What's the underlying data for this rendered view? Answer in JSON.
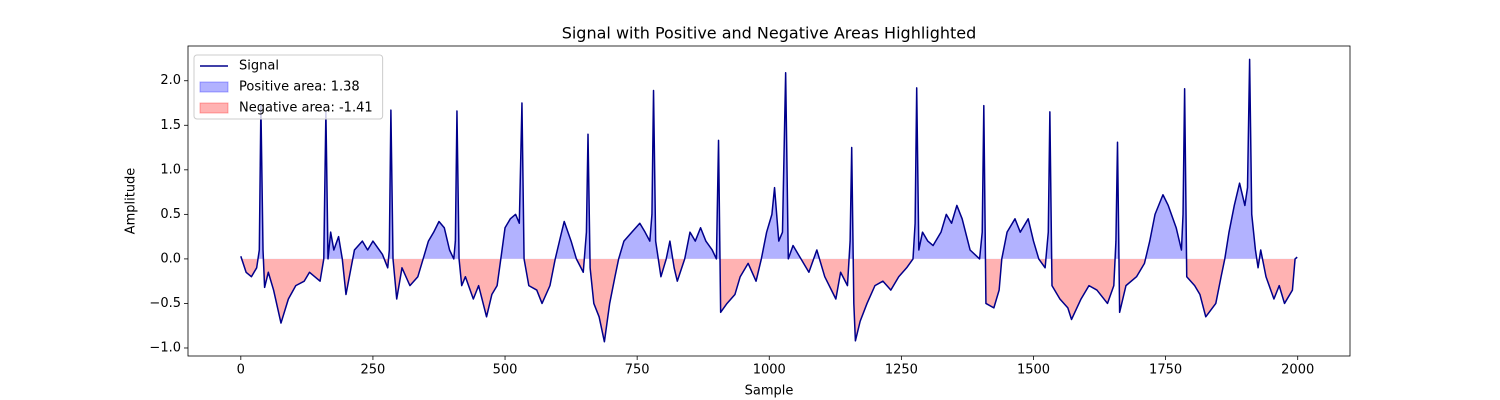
{
  "chart_data": {
    "type": "line",
    "title": "Signal with Positive and Negative Areas Highlighted",
    "xlabel": "Sample",
    "ylabel": "Amplitude",
    "x": [
      0,
      10,
      20,
      30,
      35,
      38,
      42,
      45,
      52,
      62,
      76,
      90,
      104,
      120,
      130,
      150,
      157,
      161,
      165,
      170,
      176,
      185,
      192,
      199,
      215,
      230,
      240,
      250,
      268,
      278,
      281,
      284,
      288,
      295,
      305,
      320,
      335,
      345,
      355,
      365,
      375,
      385,
      395,
      403,
      406,
      409,
      413,
      418,
      425,
      440,
      450,
      465,
      475,
      485,
      492,
      500,
      510,
      520,
      527,
      532,
      536,
      545,
      560,
      570,
      585,
      595,
      605,
      612,
      625,
      635,
      648,
      654,
      657,
      661,
      668,
      678,
      688,
      698,
      708,
      715,
      725,
      740,
      755,
      765,
      774,
      778,
      781,
      785,
      795,
      805,
      812,
      820,
      826,
      840,
      850,
      860,
      870,
      880,
      892,
      900,
      904,
      908,
      920,
      935,
      945,
      960,
      975,
      985,
      995,
      1005,
      1010,
      1018,
      1025,
      1031,
      1036,
      1045,
      1060,
      1075,
      1090,
      1105,
      1126,
      1135,
      1148,
      1153,
      1156,
      1160,
      1163,
      1172,
      1185,
      1200,
      1215,
      1230,
      1245,
      1260,
      1272,
      1276,
      1279,
      1283,
      1290,
      1300,
      1310,
      1325,
      1335,
      1345,
      1355,
      1365,
      1380,
      1398,
      1403,
      1406,
      1410,
      1425,
      1435,
      1440,
      1450,
      1465,
      1475,
      1490,
      1500,
      1510,
      1522,
      1528,
      1531,
      1535,
      1550,
      1565,
      1572,
      1590,
      1605,
      1620,
      1640,
      1652,
      1656,
      1659,
      1663,
      1675,
      1695,
      1710,
      1720,
      1730,
      1745,
      1755,
      1770,
      1780,
      1783,
      1786,
      1790,
      1805,
      1815,
      1826,
      1845,
      1855,
      1862,
      1870,
      1880,
      1890,
      1900,
      1905,
      1909,
      1913,
      1920,
      1925,
      1930,
      1940,
      1955,
      1965,
      1975,
      1990,
      1995,
      1999
    ],
    "series": [
      {
        "name": "Signal",
        "color": "#00008b",
        "values": [
          0.03,
          -0.15,
          -0.2,
          -0.1,
          0.1,
          1.72,
          0.1,
          -0.32,
          -0.15,
          -0.35,
          -0.72,
          -0.45,
          -0.3,
          -0.25,
          -0.15,
          -0.25,
          0.0,
          1.65,
          0.0,
          0.3,
          0.1,
          0.25,
          0.0,
          -0.4,
          0.1,
          0.2,
          0.1,
          0.2,
          0.05,
          -0.1,
          0.1,
          1.67,
          0.0,
          -0.45,
          -0.1,
          -0.3,
          -0.2,
          0.0,
          0.2,
          0.3,
          0.42,
          0.35,
          0.1,
          0.0,
          0.2,
          1.66,
          0.0,
          -0.3,
          -0.2,
          -0.45,
          -0.3,
          -0.65,
          -0.4,
          -0.3,
          0.0,
          0.35,
          0.45,
          0.5,
          0.4,
          1.75,
          0.0,
          -0.3,
          -0.35,
          -0.5,
          -0.3,
          0.0,
          0.25,
          0.42,
          0.2,
          0.0,
          -0.15,
          0.3,
          1.4,
          -0.1,
          -0.5,
          -0.65,
          -0.93,
          -0.5,
          -0.2,
          0.0,
          0.2,
          0.3,
          0.4,
          0.3,
          0.2,
          0.5,
          1.89,
          0.2,
          -0.2,
          0.0,
          0.2,
          -0.1,
          -0.25,
          0.0,
          0.3,
          0.2,
          0.35,
          0.2,
          0.1,
          0.0,
          1.33,
          -0.6,
          -0.5,
          -0.4,
          -0.2,
          -0.05,
          -0.25,
          0.0,
          0.3,
          0.5,
          0.8,
          0.2,
          0.3,
          2.09,
          0.0,
          0.15,
          0.0,
          -0.15,
          0.1,
          -0.2,
          -0.45,
          -0.15,
          -0.3,
          0.2,
          1.25,
          -0.5,
          -0.92,
          -0.7,
          -0.5,
          -0.3,
          -0.25,
          -0.35,
          -0.2,
          -0.1,
          0.0,
          0.4,
          1.92,
          0.1,
          0.3,
          0.2,
          0.15,
          0.3,
          0.5,
          0.4,
          0.6,
          0.45,
          0.1,
          0.0,
          0.3,
          1.72,
          -0.5,
          -0.55,
          -0.35,
          0.0,
          0.3,
          0.45,
          0.3,
          0.45,
          0.2,
          0.0,
          -0.1,
          0.3,
          1.65,
          -0.3,
          -0.45,
          -0.55,
          -0.68,
          -0.45,
          -0.3,
          -0.35,
          -0.5,
          -0.3,
          0.2,
          1.31,
          -0.6,
          -0.3,
          -0.2,
          -0.05,
          0.2,
          0.5,
          0.72,
          0.6,
          0.35,
          0.1,
          0.5,
          1.91,
          -0.2,
          -0.3,
          -0.4,
          -0.65,
          -0.5,
          -0.2,
          0.0,
          0.3,
          0.6,
          0.85,
          0.6,
          0.8,
          2.24,
          0.5,
          0.1,
          -0.1,
          0.1,
          -0.2,
          -0.45,
          -0.3,
          -0.5,
          -0.35,
          0.0,
          0.02
        ]
      }
    ],
    "fills": [
      {
        "name": "Positive area: 1.38",
        "color": "#0000ff",
        "opacity": 0.3,
        "side": "above"
      },
      {
        "name": "Negative area: -1.41",
        "color": "#ff0000",
        "opacity": 0.3,
        "side": "below"
      }
    ],
    "xlim": [
      -99.95,
      2098.95
    ],
    "xticks": [
      0,
      250,
      500,
      750,
      1000,
      1250,
      1500,
      1750,
      2000
    ],
    "ylim": [
      -1.09,
      2.39
    ],
    "yticks": [
      {
        "value": -1,
        "label": "−1.0"
      },
      {
        "value": -0.5,
        "label": "−0.5"
      },
      {
        "value": 0,
        "label": "0.0"
      },
      {
        "value": 0.5,
        "label": "0.5"
      },
      {
        "value": 1,
        "label": "1.0"
      },
      {
        "value": 1.5,
        "label": "1.5"
      },
      {
        "value": 2,
        "label": "2.0"
      }
    ],
    "legend": "upper left"
  }
}
